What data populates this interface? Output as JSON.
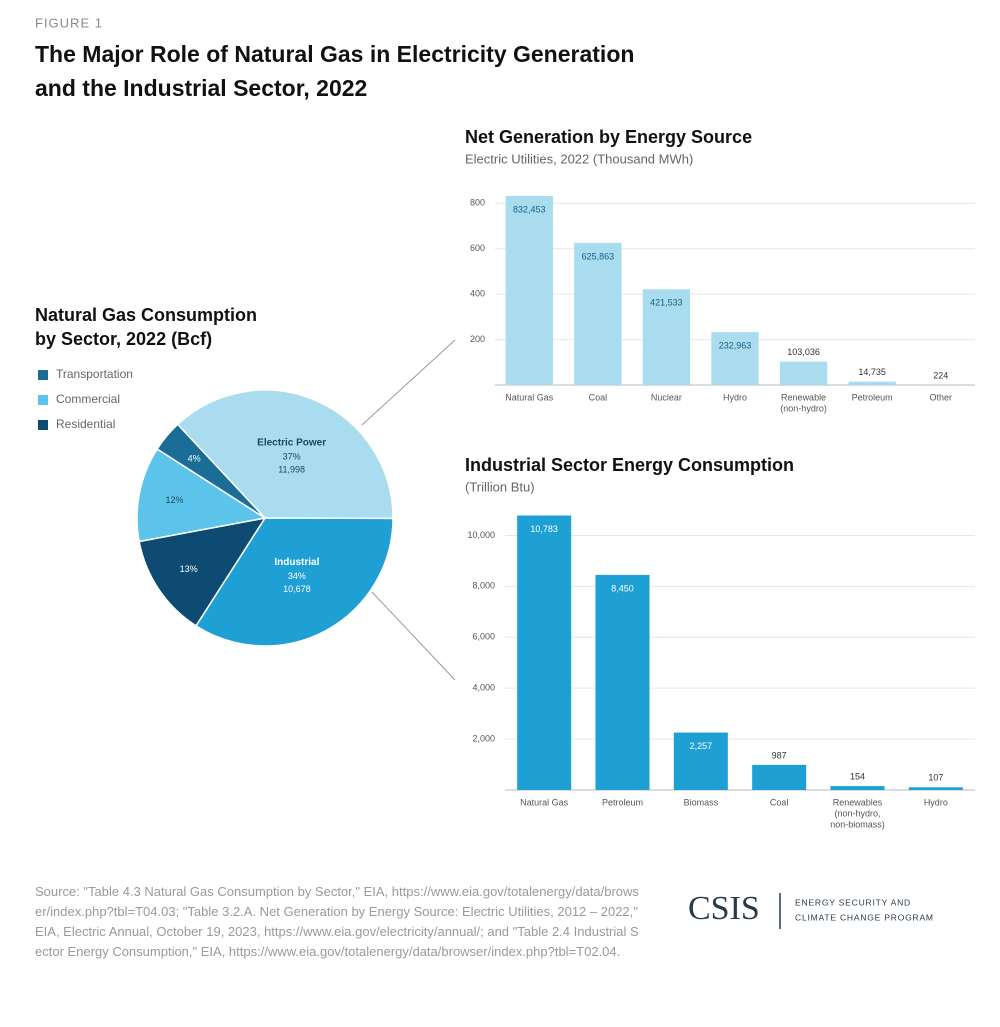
{
  "figure_label": "FIGURE 1",
  "title": [
    "The Major Role of Natural Gas in Electricity Generation",
    "and the Industrial Sector, 2022"
  ],
  "chart_data": [
    {
      "type": "pie",
      "title": [
        "Natural Gas Consumption",
        "by Sector, 2022 (Bcf)"
      ],
      "categories": [
        "Electric Power",
        "Industrial",
        "Residential",
        "Commercial",
        "Transportation"
      ],
      "values": [
        37,
        34,
        13,
        12,
        4
      ],
      "value_labels": [
        "37%",
        "34%",
        "13%",
        "12%",
        "4%"
      ],
      "amounts": [
        11998,
        10678,
        null,
        null,
        null
      ],
      "amount_labels": [
        "11,998",
        "10,678",
        null,
        null,
        null
      ],
      "colors": [
        "#a9dcef",
        "#1ea0d4",
        "#0d4b73",
        "#5cc4ea",
        "#1a6d96"
      ]
    },
    {
      "type": "bar",
      "title": "Net Generation by Energy Source",
      "subtitle": "Electric Utilities, 2022 (Thousand MWh)",
      "categories": [
        "Natural Gas",
        "Coal",
        "Nuclear",
        "Hydro",
        [
          "Renewable",
          "(non-hydro)"
        ],
        "Petroleum",
        "Other"
      ],
      "values": [
        832.453,
        625.863,
        421.533,
        232.963,
        103.036,
        14.735,
        0.224
      ],
      "value_labels": [
        "832,453",
        "625,863",
        "421,533",
        "232,963",
        "103,036",
        "14,735",
        "224"
      ],
      "color": "#a9dcef",
      "ylim": [
        0,
        850
      ],
      "yticks": [
        200,
        400,
        600,
        800
      ],
      "grid": true
    },
    {
      "type": "bar",
      "title": "Industrial Sector Energy Consumption",
      "subtitle": "(Trillion Btu)",
      "categories": [
        "Natural Gas",
        "Petroleum",
        "Biomass",
        "Coal",
        [
          "Renewables",
          "(non-hydro,",
          "non-biomass)"
        ],
        "Hydro"
      ],
      "values": [
        10783,
        8450,
        2257,
        987,
        154,
        107
      ],
      "value_labels": [
        "10,783",
        "8,450",
        "2,257",
        "987",
        "154",
        "107"
      ],
      "color": "#1ea0d4",
      "ylim": [
        0,
        11000
      ],
      "yticks": [
        {
          "value": 2000,
          "label": "2,000"
        },
        {
          "value": 4000,
          "label": "4,000"
        },
        {
          "value": 6000,
          "label": "6,000"
        },
        {
          "value": 8000,
          "label": "8,000"
        },
        {
          "value": 10000,
          "label": "10,000"
        }
      ],
      "grid": true
    }
  ],
  "source": "Source: \"Table 4.3 Natural Gas Consumption by Sector,\" EIA, https://www.eia.gov/totalenergy/data/browser/index.php?tbl=T04.03; \"Table 3.2.A. Net Generation by Energy Source: Electric Utilities, 2012 – 2022,\" EIA, Electric Annual, October 19, 2023, https://www.eia.gov/electricity/annual/; and \"Table 2.4 Industrial Sector Energy Consumption,\" EIA, https://www.eia.gov/totalenergy/data/browser/index.php?tbl=T02.04.",
  "logo": {
    "name": "CSIS",
    "program": [
      "ENERGY SECURITY AND",
      "CLIMATE CHANGE PROGRAM"
    ]
  }
}
